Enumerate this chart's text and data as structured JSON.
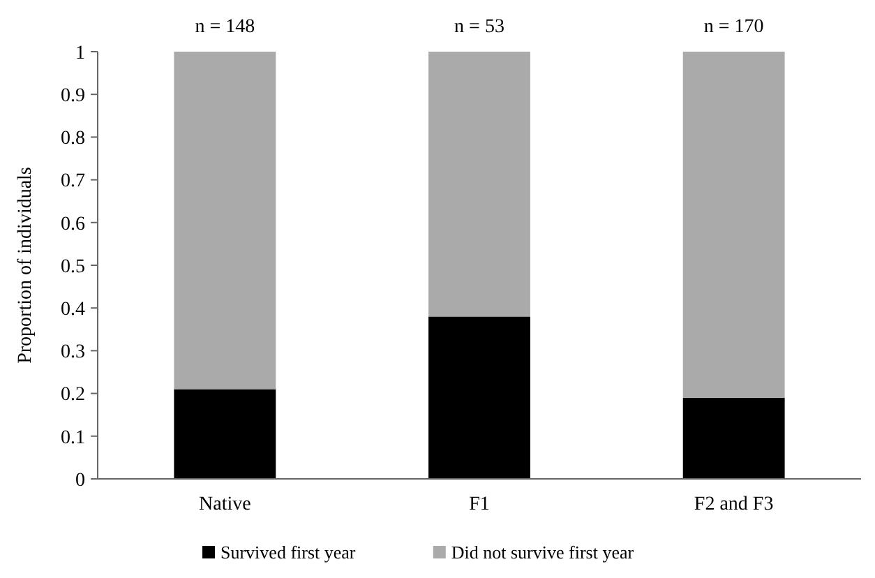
{
  "chart_data": {
    "type": "bar",
    "stacked": true,
    "ylabel": "Proportion of individuals",
    "categories": [
      "Native",
      "F1",
      "F2 and F3"
    ],
    "series": [
      {
        "name": "Survived first year",
        "color": "#000000",
        "values": [
          0.21,
          0.38,
          0.19
        ]
      },
      {
        "name": "Did not survive first year",
        "color": "#aaaaaa",
        "values": [
          0.79,
          0.62,
          0.81
        ]
      }
    ],
    "ylim": [
      0,
      1
    ],
    "yticks": [
      0,
      0.1,
      0.2,
      0.3,
      0.4,
      0.5,
      0.6,
      0.7,
      0.8,
      0.9,
      1
    ],
    "grid": false,
    "legend": "bottom",
    "annotations": [
      {
        "text": "n = 148",
        "x": "Native",
        "y": 1
      },
      {
        "text": "n = 53",
        "x": "F1",
        "y": 1
      },
      {
        "text": "n = 170",
        "x": "F2 and F3",
        "y": 1
      }
    ]
  }
}
